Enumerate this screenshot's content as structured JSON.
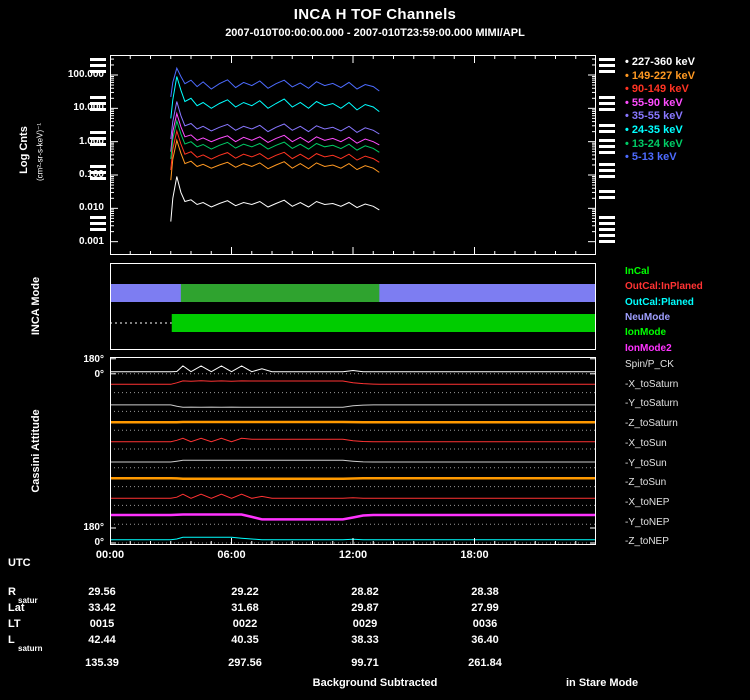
{
  "title": "INCA H TOF Channels",
  "subtitle": "2007-010T00:00:00.000 - 2007-010T23:59:00.000 MIMI/APL",
  "footer": {
    "center": "Background Subtracted",
    "right": "in Stare Mode"
  },
  "axes": {
    "y1_label": "Log Cnts",
    "y1_units": "(cm²-sr-s-keV)⁻¹",
    "y1_ticks": [
      "100.000",
      "10.000",
      "1.000",
      "0.100",
      "0.010",
      "0.001"
    ],
    "y2_label": "INCA Mode",
    "y3_label": "Cassini Attitude",
    "y3_ticks": [
      "180°",
      "0°",
      "180°",
      "0°"
    ],
    "x_ticks": [
      "00:00",
      "06:00",
      "12:00",
      "18:00"
    ],
    "utc_label": "UTC"
  },
  "ephemeris": {
    "rows": [
      {
        "label": "R",
        "sub": "satur",
        "values": [
          "29.56",
          "29.22",
          "28.82",
          "28.38"
        ]
      },
      {
        "label": "Lat",
        "sub": "",
        "values": [
          "33.42",
          "31.68",
          "29.87",
          "27.99"
        ]
      },
      {
        "label": "LT",
        "sub": "",
        "values": [
          "0015",
          "0022",
          "0029",
          "0036"
        ]
      },
      {
        "label": "L",
        "sub": "saturn",
        "values": [
          "42.44",
          "40.35",
          "38.33",
          "36.40"
        ]
      },
      {
        "label": "",
        "sub": "",
        "values": [
          "135.39",
          "297.56",
          "99.71",
          "261.84"
        ]
      }
    ]
  },
  "chart_data": [
    {
      "type": "line",
      "title": "INCA H TOF Channels",
      "ylog": true,
      "ylim": [
        0.001,
        300
      ],
      "ylabel": "Log Cnts (cm²-sr-s-keV)⁻¹",
      "xlabel": "UTC",
      "x_range_hours": [
        0,
        24
      ],
      "x_hours": [
        3.0,
        3.1,
        3.3,
        3.5,
        3.7,
        4.0,
        4.3,
        4.6,
        5.0,
        5.4,
        5.8,
        6.2,
        6.6,
        7.0,
        7.4,
        7.8,
        8.2,
        8.6,
        9.0,
        9.4,
        9.8,
        10.2,
        10.6,
        11.0,
        11.4,
        11.8,
        12.2,
        12.6,
        13.0,
        13.3
      ],
      "series": [
        {
          "name": "227-360 keV",
          "color": "#ffffff",
          "values": [
            0.004,
            0.02,
            0.09,
            0.03,
            0.016,
            0.018,
            0.013,
            0.015,
            0.011,
            0.014,
            0.017,
            0.012,
            0.015,
            0.013,
            0.016,
            0.011,
            0.014,
            0.0175,
            0.0115,
            0.015,
            0.011,
            0.016,
            0.013,
            0.014,
            0.0115,
            0.015,
            0.0105,
            0.0135,
            0.0115,
            0.009
          ]
        },
        {
          "name": "149-227 keV",
          "color": "#ff9922",
          "values": [
            0.07,
            0.3,
            1.1,
            0.45,
            0.22,
            0.26,
            0.18,
            0.21,
            0.16,
            0.2,
            0.24,
            0.17,
            0.22,
            0.18,
            0.23,
            0.155,
            0.2,
            0.25,
            0.16,
            0.22,
            0.155,
            0.23,
            0.18,
            0.2,
            0.16,
            0.22,
            0.145,
            0.19,
            0.16,
            0.12
          ]
        },
        {
          "name": "90-149 keV",
          "color": "#ff3322",
          "values": [
            0.14,
            0.6,
            2.1,
            0.85,
            0.42,
            0.5,
            0.34,
            0.4,
            0.3,
            0.39,
            0.47,
            0.32,
            0.42,
            0.35,
            0.44,
            0.3,
            0.39,
            0.48,
            0.31,
            0.42,
            0.3,
            0.44,
            0.35,
            0.39,
            0.31,
            0.42,
            0.28,
            0.37,
            0.31,
            0.24
          ]
        },
        {
          "name": "55-90 keV",
          "color": "#ff4dff",
          "values": [
            0.5,
            2,
            7,
            2.8,
            1.4,
            1.6,
            1.1,
            1.3,
            1.0,
            1.25,
            1.5,
            1.0,
            1.35,
            1.1,
            1.4,
            0.95,
            1.25,
            1.55,
            1.0,
            1.35,
            0.95,
            1.4,
            1.1,
            1.25,
            1.0,
            1.35,
            0.9,
            1.2,
            1.0,
            0.8
          ]
        },
        {
          "name": "35-55 keV",
          "color": "#8877ff",
          "values": [
            1.2,
            4,
            16,
            6,
            3,
            3.5,
            2.4,
            2.9,
            2.1,
            2.7,
            3.3,
            2.2,
            2.9,
            2.4,
            3.1,
            2.0,
            2.7,
            3.4,
            2.2,
            2.9,
            2.0,
            3.0,
            2.4,
            2.7,
            2.1,
            2.9,
            1.9,
            2.6,
            2.2,
            1.7
          ]
        },
        {
          "name": "24-35 keV",
          "color": "#00ffff",
          "values": [
            5,
            18,
            90,
            35,
            16,
            20,
            12,
            15,
            10,
            14,
            18,
            11,
            15,
            12,
            17,
            10,
            14,
            19,
            11,
            15,
            10,
            16,
            12,
            14,
            10,
            15,
            9,
            13,
            11,
            8
          ]
        },
        {
          "name": "13-24 keV",
          "color": "#00cc66",
          "values": [
            0.3,
            1.2,
            4.2,
            1.7,
            0.85,
            1.0,
            0.7,
            0.82,
            0.6,
            0.78,
            0.95,
            0.64,
            0.84,
            0.7,
            0.88,
            0.6,
            0.78,
            0.97,
            0.63,
            0.84,
            0.6,
            0.88,
            0.7,
            0.78,
            0.62,
            0.84,
            0.56,
            0.75,
            0.63,
            0.48
          ]
        },
        {
          "name": "5-13 keV",
          "color": "#4d6bff",
          "values": [
            22,
            60,
            160,
            90,
            55,
            70,
            45,
            62,
            38,
            55,
            72,
            42,
            60,
            48,
            66,
            40,
            55,
            70,
            44,
            58,
            40,
            63,
            48,
            56,
            42,
            60,
            38,
            52,
            45,
            33
          ]
        }
      ]
    },
    {
      "type": "mode-bars",
      "labels": [
        {
          "text": "InCal",
          "color": "#00ff00"
        },
        {
          "text": "OutCal:InPlaned",
          "color": "#ff3333"
        },
        {
          "text": "OutCal:Planed",
          "color": "#00ffff"
        },
        {
          "text": "NeuMode",
          "color": "#9f9fff"
        },
        {
          "text": "IonMode",
          "color": "#00ff00"
        },
        {
          "text": "IonMode2",
          "color": "#ff33ff"
        }
      ],
      "bars": [
        {
          "row": 0,
          "start": 0,
          "end": 24,
          "color": "#7d7df2"
        },
        {
          "row": 0,
          "start": 3.5,
          "end": 13.3,
          "color": "#2fa32f"
        },
        {
          "row": 1,
          "start": 3.05,
          "end": 24,
          "color": "#00cc00"
        }
      ],
      "dotted_lead": {
        "row": 1,
        "start": 0,
        "end": 3.05
      }
    },
    {
      "type": "line-multiband",
      "y_units": "degrees",
      "y_band_range": [
        0,
        180
      ],
      "x_hours": [
        0,
        1,
        2,
        3,
        3.3,
        3.6,
        4,
        4.5,
        5,
        5.5,
        6,
        6.5,
        7,
        7.5,
        8,
        8.5,
        9,
        9.5,
        10,
        10.5,
        11,
        11.5,
        12,
        12.5,
        13,
        13.3,
        14,
        15,
        16,
        18,
        20,
        22,
        24
      ],
      "series": [
        {
          "name": "Spin/P_CK",
          "color": "#ffffff",
          "width": 1,
          "values": [
            25,
            25,
            25,
            25,
            28,
            95,
            25,
            95,
            25,
            95,
            25,
            95,
            25,
            60,
            25,
            25,
            25,
            25,
            25,
            25,
            25,
            25,
            40,
            25,
            25,
            25,
            25,
            25,
            25,
            25,
            25,
            25,
            25
          ]
        },
        {
          "name": "-X_toSaturn",
          "color": "#ff3333",
          "width": 1,
          "values": [
            100,
            100,
            100,
            100,
            118,
            140,
            136,
            142,
            137,
            141,
            137,
            141,
            139,
            139,
            139,
            139,
            139,
            139,
            139,
            139,
            139,
            139,
            118,
            108,
            102,
            100,
            100,
            100,
            100,
            100,
            100,
            100,
            100
          ]
        },
        {
          "name": "-Y_toSaturn",
          "color": "#cccccc",
          "width": 1,
          "values": [
            78,
            78,
            78,
            78,
            62,
            50,
            52,
            49,
            52,
            49,
            52,
            49,
            50,
            50,
            50,
            50,
            50,
            50,
            50,
            50,
            50,
            50,
            68,
            76,
            78,
            78,
            78,
            78,
            78,
            78,
            78,
            78,
            78
          ]
        },
        {
          "name": "-Z_toSaturn",
          "color": "#ff9900",
          "width": 2.5,
          "values": [
            95,
            95,
            95,
            95,
            96,
            98,
            98,
            98,
            98,
            98,
            98,
            98,
            98,
            98,
            98,
            98,
            98,
            98,
            98,
            98,
            98,
            98,
            97,
            95,
            95,
            95,
            95,
            95,
            95,
            95,
            95,
            95,
            95
          ]
        },
        {
          "name": "-X_toSun",
          "color": "#ff3333",
          "width": 1,
          "values": [
            88,
            88,
            88,
            88,
            105,
            128,
            88,
            128,
            88,
            128,
            88,
            128,
            118,
            118,
            118,
            118,
            118,
            118,
            118,
            118,
            118,
            118,
            98,
            90,
            88,
            88,
            88,
            88,
            88,
            88,
            88,
            88,
            88
          ]
        },
        {
          "name": "-Y_toSun",
          "color": "#cccccc",
          "width": 1,
          "values": [
            70,
            70,
            70,
            70,
            79,
            90,
            90,
            91,
            90,
            91,
            90,
            91,
            90,
            90,
            90,
            90,
            90,
            90,
            90,
            90,
            90,
            90,
            79,
            71,
            70,
            70,
            70,
            70,
            70,
            70,
            70,
            70,
            70
          ]
        },
        {
          "name": "-Z_toSun",
          "color": "#ff9900",
          "width": 2.5,
          "values": [
            100,
            100,
            100,
            100,
            98,
            95,
            95,
            95,
            95,
            95,
            95,
            95,
            95,
            95,
            95,
            95,
            95,
            95,
            95,
            95,
            95,
            95,
            97,
            100,
            100,
            100,
            100,
            100,
            100,
            100,
            100,
            100,
            100
          ]
        },
        {
          "name": "-X_toNEP",
          "color": "#ff3333",
          "width": 1,
          "values": [
            85,
            85,
            85,
            85,
            98,
            135,
            85,
            135,
            85,
            135,
            85,
            135,
            85,
            108,
            85,
            85,
            85,
            85,
            85,
            85,
            85,
            85,
            93,
            86,
            85,
            85,
            85,
            85,
            85,
            85,
            85,
            85,
            85
          ]
        },
        {
          "name": "-Y_toNEP",
          "color": "#ff33ff",
          "width": 2.5,
          "values": [
            110,
            110,
            110,
            110,
            113,
            116,
            116,
            116,
            116,
            116,
            116,
            116,
            88,
            58,
            58,
            58,
            58,
            58,
            58,
            58,
            58,
            58,
            80,
            104,
            110,
            110,
            110,
            110,
            110,
            110,
            110,
            110,
            110
          ]
        },
        {
          "name": "-Z_toNEP",
          "color": "#00ffff",
          "width": 1,
          "values": [
            40,
            40,
            40,
            40,
            48,
            68,
            68,
            70,
            68,
            70,
            68,
            58,
            48,
            40,
            40,
            40,
            40,
            40,
            40,
            40,
            40,
            40,
            44,
            40,
            40,
            40,
            40,
            40,
            40,
            40,
            40,
            40,
            40
          ]
        }
      ]
    }
  ]
}
